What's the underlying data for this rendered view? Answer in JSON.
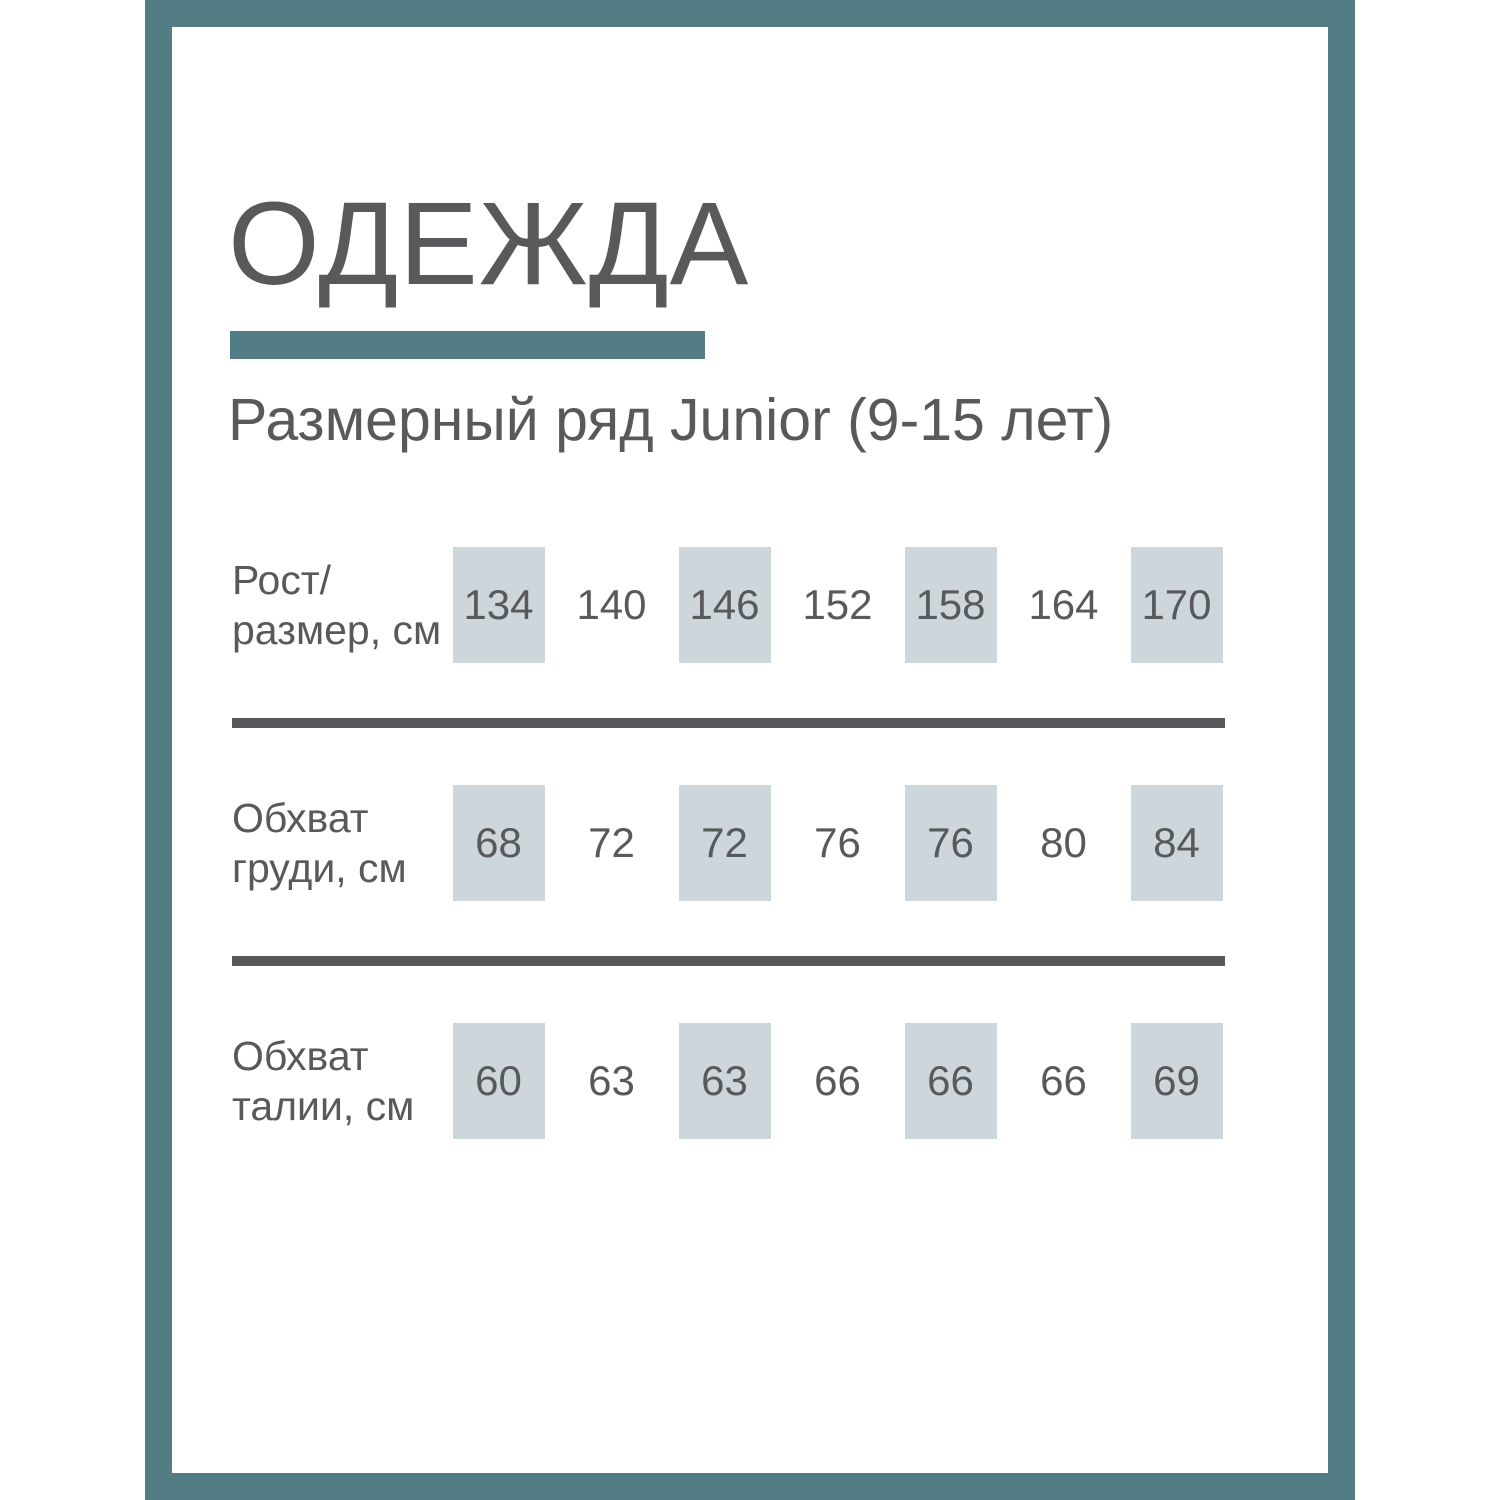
{
  "page": {
    "title": "ОДЕЖДА",
    "subtitle": "Размерный ряд Junior (9-15 лет)"
  },
  "colors": {
    "frame_teal": "#537d85",
    "accent_bar_teal": "#537d85",
    "highlight_box": "#cdd7db",
    "text_gray": "#58595b",
    "divider_gray": "#58585a"
  },
  "table": {
    "rows": [
      {
        "label_line1": "Рост/",
        "label_line2": "размер, см",
        "values": [
          "134",
          "140",
          "146",
          "152",
          "158",
          "164",
          "170"
        ],
        "highlighted_indices": [
          0,
          2,
          4,
          6
        ]
      },
      {
        "label_line1": "Обхват",
        "label_line2": "груди, см",
        "values": [
          "68",
          "72",
          "72",
          "76",
          "76",
          "80",
          "84"
        ],
        "highlighted_indices": [
          0,
          2,
          4,
          6
        ]
      },
      {
        "label_line1": "Обхват",
        "label_line2": "талии, см",
        "values": [
          "60",
          "63",
          "63",
          "66",
          "66",
          "66",
          "69"
        ],
        "highlighted_indices": [
          0,
          2,
          4,
          6
        ]
      }
    ]
  }
}
